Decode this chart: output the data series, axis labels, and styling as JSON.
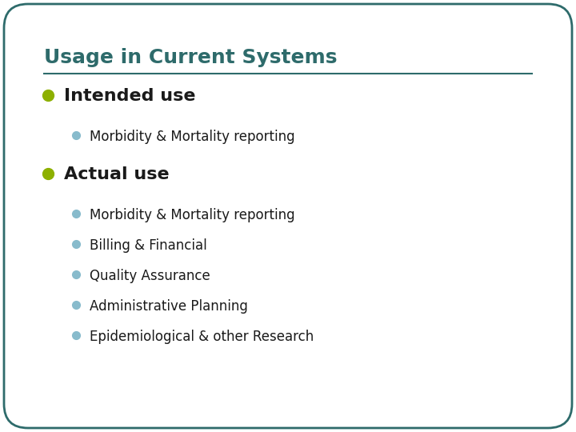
{
  "title": "Usage in Current Systems",
  "title_color": "#2E6B6B",
  "title_fontsize": 18,
  "line_color": "#2E6B6B",
  "background_color": "#ffffff",
  "border_color": "#2E6B6B",
  "level1_bullet_color": "#8DB000",
  "level2_bullet_color": "#88BBCC",
  "level1_items": [
    {
      "text": "Intended use",
      "fontsize": 16,
      "sub_items": [
        "Morbidity & Mortality reporting"
      ]
    },
    {
      "text": "Actual use",
      "fontsize": 16,
      "sub_items": [
        "Morbidity & Mortality reporting",
        "Billing & Financial",
        "Quality Assurance",
        "Administrative Planning",
        "Epidemiological & other Research"
      ]
    }
  ],
  "sub_fontsize": 12,
  "text_color": "#1A1A1A"
}
